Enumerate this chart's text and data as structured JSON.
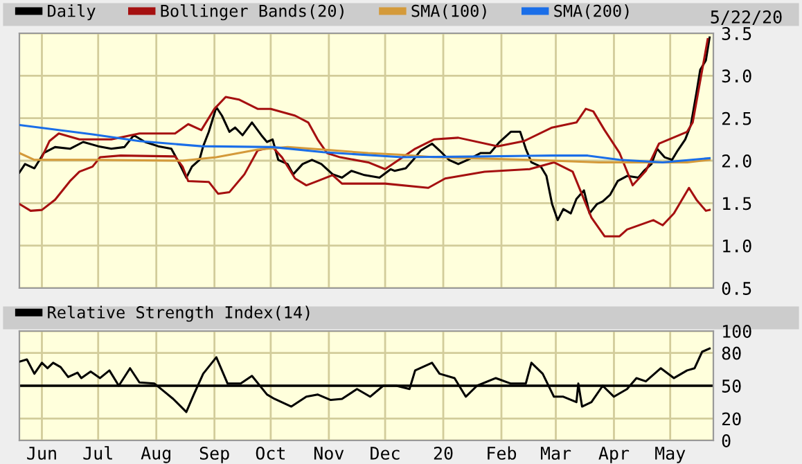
{
  "chart_data": [
    {
      "type": "line",
      "annotations": [
        "5/22/20"
      ],
      "legend": "top",
      "grid": true,
      "tick_labels": "y",
      "marker": "none",
      "line_style": "solid",
      "xlim": [
        "2019-05-20",
        "2020-05-24"
      ],
      "ylim": [
        0.5,
        3.5
      ],
      "xticks": [
        {
          "value": "2019-06-01",
          "label": null
        },
        {
          "value": "2019-07-01",
          "label": null
        },
        {
          "value": "2019-08-01",
          "label": null
        },
        {
          "value": "2019-09-01",
          "label": null
        },
        {
          "value": "2019-10-01",
          "label": null
        },
        {
          "value": "2019-11-01",
          "label": null
        },
        {
          "value": "2019-12-01",
          "label": null
        },
        {
          "value": "2020-01-01",
          "label": null
        },
        {
          "value": "2020-02-01",
          "label": null
        },
        {
          "value": "2020-03-01",
          "label": null
        },
        {
          "value": "2020-04-01",
          "label": null
        },
        {
          "value": "2020-05-01",
          "label": null
        }
      ],
      "yticks": [
        0.5,
        {
          "value": 1,
          "label": "1.0"
        },
        1.5,
        {
          "value": 2,
          "label": "2.0"
        },
        2.5,
        {
          "value": 3,
          "label": "3.0"
        },
        3.5
      ],
      "series": [
        {
          "name": "Daily",
          "color": "#000000",
          "x": [
            "2019-05-20",
            "2019-05-23",
            "2019-05-28",
            "2019-06-02",
            "2019-06-08",
            "2019-06-16",
            "2019-06-23",
            "2019-07-01",
            "2019-07-08",
            "2019-07-15",
            "2019-07-20",
            "2019-07-26",
            "2019-08-02",
            "2019-08-09",
            "2019-08-13",
            "2019-08-17",
            "2019-08-20",
            "2019-08-24",
            "2019-08-26",
            "2019-08-29",
            "2019-09-02",
            "2019-09-05",
            "2019-09-09",
            "2019-09-12",
            "2019-09-16",
            "2019-09-21",
            "2019-09-26",
            "2019-09-29",
            "2019-10-02",
            "2019-10-05",
            "2019-10-10",
            "2019-10-13",
            "2019-10-18",
            "2019-10-23",
            "2019-10-28",
            "2019-11-03",
            "2019-11-08",
            "2019-11-13",
            "2019-11-20",
            "2019-11-28",
            "2019-12-04",
            "2019-12-06",
            "2019-12-12",
            "2019-12-16",
            "2019-12-20",
            "2019-12-26",
            "2019-12-30",
            "2020-01-04",
            "2020-01-09",
            "2020-01-14",
            "2020-01-21",
            "2020-01-26",
            "2020-01-31",
            "2020-02-06",
            "2020-02-11",
            "2020-02-14",
            "2020-02-17",
            "2020-02-22",
            "2020-02-25",
            "2020-02-28",
            "2020-03-02",
            "2020-03-05",
            "2020-03-09",
            "2020-03-12",
            "2020-03-16",
            "2020-03-19",
            "2020-03-23",
            "2020-03-26",
            "2020-03-30",
            "2020-04-03",
            "2020-04-08",
            "2020-04-14",
            "2020-04-17",
            "2020-04-21",
            "2020-04-24",
            "2020-04-28",
            "2020-05-02",
            "2020-05-05",
            "2020-05-09",
            "2020-05-12",
            "2020-05-15",
            "2020-05-17",
            "2020-05-20",
            "2020-05-22"
          ],
          "values": [
            1.86,
            1.96,
            1.91,
            2.09,
            2.16,
            2.14,
            2.22,
            2.17,
            2.14,
            2.16,
            2.3,
            2.22,
            2.17,
            2.14,
            1.98,
            1.8,
            1.93,
            2.01,
            2.17,
            2.34,
            2.63,
            2.53,
            2.34,
            2.39,
            2.3,
            2.45,
            2.3,
            2.22,
            2.25,
            2.01,
            1.96,
            1.84,
            1.96,
            2.01,
            1.96,
            1.84,
            1.8,
            1.88,
            1.83,
            1.8,
            1.9,
            1.88,
            1.91,
            2.01,
            2.12,
            2.2,
            2.12,
            2.01,
            1.96,
            2.01,
            2.09,
            2.09,
            2.22,
            2.34,
            2.34,
            2.14,
            1.98,
            1.93,
            1.82,
            1.49,
            1.3,
            1.43,
            1.38,
            1.55,
            1.65,
            1.38,
            1.49,
            1.52,
            1.6,
            1.76,
            1.82,
            1.8,
            1.88,
            1.96,
            2.14,
            2.04,
            2.01,
            2.12,
            2.25,
            2.42,
            2.8,
            3.07,
            3.18,
            3.45
          ]
        },
        {
          "name": "Bollinger Bands(20)",
          "color": "#a51010",
          "x": [
            "2019-06-01",
            "2019-06-05",
            "2019-06-10",
            "2019-06-21",
            "2019-06-29",
            "2019-07-08",
            "2019-07-23",
            "2019-08-11",
            "2019-08-18",
            "2019-08-25",
            "2019-09-01",
            "2019-09-07",
            "2019-09-14",
            "2019-09-24",
            "2019-10-01",
            "2019-10-14",
            "2019-10-21",
            "2019-10-26",
            "2019-10-31",
            "2019-11-07",
            "2019-11-22",
            "2019-12-01",
            "2019-12-17",
            "2019-12-27",
            "2020-01-09",
            "2020-01-30",
            "2020-02-13",
            "2020-02-28",
            "2020-03-12",
            "2020-03-17",
            "2020-03-21",
            "2020-03-27",
            "2020-04-04",
            "2020-04-11",
            "2020-04-18",
            "2020-04-25",
            "2020-05-10",
            "2020-05-13",
            "2020-05-21"
          ],
          "values": [
            2.04,
            2.23,
            2.32,
            2.25,
            2.25,
            2.25,
            2.32,
            2.32,
            2.43,
            2.36,
            2.61,
            2.75,
            2.72,
            2.61,
            2.61,
            2.53,
            2.45,
            2.25,
            2.09,
            2.04,
            1.98,
            1.9,
            2.14,
            2.25,
            2.27,
            2.17,
            2.23,
            2.39,
            2.45,
            2.61,
            2.58,
            2.36,
            2.09,
            1.71,
            1.88,
            2.2,
            2.34,
            2.45,
            3.43
          ]
        },
        {
          "color": "#a51010",
          "x": [
            "2019-05-20",
            "2019-05-26",
            "2019-06-01",
            "2019-06-08",
            "2019-06-16",
            "2019-06-21",
            "2019-06-28",
            "2019-07-02",
            "2019-07-13",
            "2019-08-11",
            "2019-08-15",
            "2019-08-18",
            "2019-08-29",
            "2019-09-03",
            "2019-09-09",
            "2019-09-17",
            "2019-09-24",
            "2019-10-02",
            "2019-10-07",
            "2019-10-14",
            "2019-10-20",
            "2019-10-26",
            "2019-11-03",
            "2019-11-08",
            "2019-12-01",
            "2019-12-24",
            "2020-01-02",
            "2020-01-23",
            "2020-02-16",
            "2020-02-29",
            "2020-03-10",
            "2020-03-20",
            "2020-03-27",
            "2020-04-04",
            "2020-04-08",
            "2020-04-22",
            "2020-04-27",
            "2020-05-03",
            "2020-05-11",
            "2020-05-15",
            "2020-05-20",
            "2020-05-22"
          ],
          "values": [
            1.49,
            1.41,
            1.42,
            1.54,
            1.76,
            1.87,
            1.93,
            2.04,
            2.06,
            2.05,
            1.93,
            1.76,
            1.75,
            1.61,
            1.63,
            1.84,
            2.12,
            2.16,
            2.04,
            1.79,
            1.71,
            1.76,
            1.83,
            1.73,
            1.73,
            1.68,
            1.79,
            1.87,
            1.9,
            1.98,
            1.87,
            1.33,
            1.11,
            1.11,
            1.19,
            1.3,
            1.24,
            1.38,
            1.68,
            1.54,
            1.41,
            1.42
          ]
        },
        {
          "name": "SMA(100)",
          "color": "#d49a3a",
          "x": [
            "2019-05-20",
            "2019-05-28",
            "2019-06-28",
            "2019-08-15",
            "2019-09-02",
            "2019-09-24",
            "2019-10-10",
            "2019-10-29",
            "2019-11-22",
            "2019-12-10",
            "2019-12-27",
            "2020-02-16",
            "2020-03-24",
            "2020-04-15",
            "2020-05-10",
            "2020-05-22"
          ],
          "values": [
            2.09,
            2.01,
            2.01,
            2.0,
            2.04,
            2.13,
            2.16,
            2.13,
            2.09,
            2.07,
            2.04,
            2.01,
            1.98,
            1.98,
            1.98,
            2.01
          ]
        },
        {
          "name": "SMA(200)",
          "color": "#1a6ee8",
          "x": [
            "2019-05-20",
            "2019-06-28",
            "2019-07-23",
            "2019-08-25",
            "2019-10-02",
            "2019-10-29",
            "2019-12-10",
            "2020-01-23",
            "2020-02-28",
            "2020-03-18",
            "2020-04-04",
            "2020-04-27",
            "2020-05-22"
          ],
          "values": [
            2.42,
            2.31,
            2.23,
            2.17,
            2.16,
            2.1,
            2.04,
            2.05,
            2.06,
            2.06,
            2.01,
            1.98,
            2.03
          ]
        }
      ]
    },
    {
      "type": "line",
      "legend": "top",
      "grid": true,
      "marker": "none",
      "line_style": "solid",
      "xlim": [
        "2019-05-20",
        "2020-05-24"
      ],
      "ylim": [
        0,
        100
      ],
      "xticks": [
        {
          "value": "2019-06-01",
          "label": "Jun"
        },
        {
          "value": "2019-07-01",
          "label": "Jul"
        },
        {
          "value": "2019-08-01",
          "label": "Aug"
        },
        {
          "value": "2019-09-01",
          "label": "Sep"
        },
        {
          "value": "2019-10-01",
          "label": "Oct"
        },
        {
          "value": "2019-11-01",
          "label": "Nov"
        },
        {
          "value": "2019-12-01",
          "label": "Dec"
        },
        {
          "value": "2020-01-01",
          "label": "20"
        },
        {
          "value": "2020-02-01",
          "label": "Feb"
        },
        {
          "value": "2020-03-01",
          "label": "Mar"
        },
        {
          "value": "2020-04-01",
          "label": "Apr"
        },
        {
          "value": "2020-05-01",
          "label": "May"
        }
      ],
      "yticks": [
        0,
        20,
        50,
        80,
        100
      ],
      "ref_lines": [
        {
          "axis": "y",
          "value": 50,
          "color": "#000000"
        }
      ],
      "series": [
        {
          "name": "Relative Strength Index(14)",
          "color": "#000000",
          "x": [
            "2019-05-20",
            "2019-05-24",
            "2019-05-28",
            "2019-06-01",
            "2019-06-04",
            "2019-06-07",
            "2019-06-11",
            "2019-06-15",
            "2019-06-20",
            "2019-06-22",
            "2019-06-27",
            "2019-07-02",
            "2019-07-07",
            "2019-07-12",
            "2019-07-18",
            "2019-07-23",
            "2019-07-31",
            "2019-08-05",
            "2019-08-10",
            "2019-08-17",
            "2019-08-21",
            "2019-08-26",
            "2019-09-02",
            "2019-09-08",
            "2019-09-15",
            "2019-09-21",
            "2019-09-29",
            "2019-10-03",
            "2019-10-12",
            "2019-10-20",
            "2019-10-26",
            "2019-11-02",
            "2019-11-08",
            "2019-11-16",
            "2019-11-23",
            "2019-11-30",
            "2019-12-07",
            "2019-12-14",
            "2019-12-17",
            "2019-12-26",
            "2019-12-30",
            "2020-01-07",
            "2020-01-13",
            "2020-01-19",
            "2020-01-29",
            "2020-02-06",
            "2020-02-14",
            "2020-02-17",
            "2020-02-23",
            "2020-02-29",
            "2020-03-05",
            "2020-03-12",
            "2020-03-13",
            "2020-03-15",
            "2020-03-20",
            "2020-03-26",
            "2020-04-01",
            "2020-04-08",
            "2020-04-13",
            "2020-04-18",
            "2020-04-26",
            "2020-05-03",
            "2020-05-10",
            "2020-05-14",
            "2020-05-18",
            "2020-05-22"
          ],
          "values": [
            72,
            74,
            61,
            71,
            66,
            71,
            67,
            58,
            62,
            57,
            63,
            57,
            64,
            50,
            66,
            53,
            52,
            45,
            38,
            26,
            42,
            61,
            76,
            52,
            52,
            59,
            42,
            38,
            31,
            40,
            42,
            37,
            38,
            47,
            40,
            50,
            50,
            47,
            64,
            71,
            61,
            57,
            40,
            50,
            57,
            52,
            52,
            71,
            61,
            40,
            40,
            35,
            52,
            31,
            35,
            50,
            40,
            47,
            57,
            54,
            66,
            57,
            64,
            66,
            81,
            84
          ]
        }
      ]
    }
  ]
}
